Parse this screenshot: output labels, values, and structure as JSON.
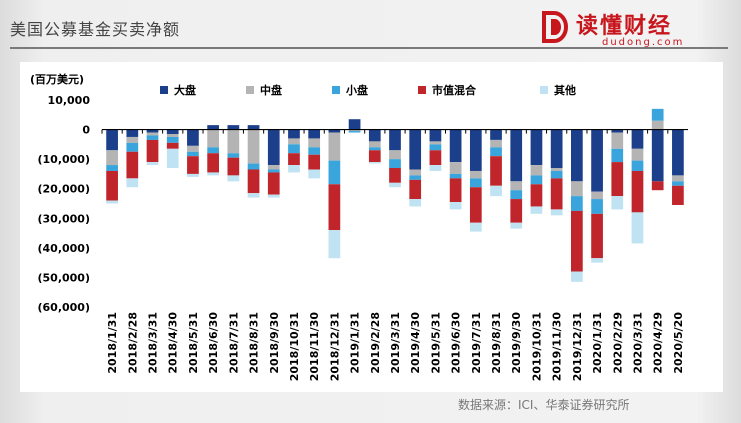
{
  "header": {
    "title": "美国公募基金买卖净额",
    "logo_cn": "读懂财经",
    "logo_en": "dudong.com"
  },
  "source": "数据来源：ICI、华泰证券研究所",
  "colors": {
    "large": "#1b3f8b",
    "mid": "#b4b4b4",
    "small": "#3aa5dc",
    "value_mix": "#c0252b",
    "other": "#bfe3f2",
    "brand": "#c8161d"
  },
  "chart_data": {
    "type": "bar",
    "stacked": true,
    "title": "",
    "unit_label": "(百万美元)",
    "xlabel": "",
    "ylabel": "",
    "ylim": [
      -60000,
      10000
    ],
    "yticks": [
      10000,
      0,
      -10000,
      -20000,
      -30000,
      -40000,
      -50000,
      -60000
    ],
    "ytick_labels": [
      "10,000",
      "0",
      "(10,000)",
      "(20,000)",
      "(30,000)",
      "(40,000)",
      "(50,000)",
      "(60,000)"
    ],
    "legend_position": "top",
    "grid": false,
    "categories": [
      "2018/1/31",
      "2018/2/28",
      "2018/3/31",
      "2018/4/30",
      "2018/5/31",
      "2018/6/30",
      "2018/7/31",
      "2018/8/31",
      "2018/9/30",
      "2018/10/31",
      "2018/11/30",
      "2018/12/31",
      "2019/1/31",
      "2019/2/28",
      "2019/3/31",
      "2019/4/30",
      "2019/5/31",
      "2019/6/30",
      "2019/7/31",
      "2019/8/31",
      "2019/9/30",
      "2019/10/31",
      "2019/11/30",
      "2019/12/31",
      "2020/1/31",
      "2020/2/29",
      "2020/3/31",
      "2020/4/29",
      "2020/5/20"
    ],
    "series": [
      {
        "name": "大盘",
        "key": "large",
        "values": [
          -7000,
          -2500,
          -1000,
          -1500,
          -5500,
          1500,
          1500,
          1500,
          -12000,
          -3000,
          -3000,
          -1000,
          3500,
          -4000,
          -7000,
          -13500,
          -4000,
          -11000,
          -14000,
          -3500,
          -17500,
          -12000,
          -13000,
          -17500,
          -21000,
          -1000,
          -6500,
          -17500,
          -15500
        ]
      },
      {
        "name": "中盘",
        "key": "mid",
        "values": [
          -5000,
          -2000,
          -1000,
          -1000,
          -2000,
          -6000,
          -8000,
          -11500,
          -1500,
          -2000,
          -3000,
          -9500,
          -500,
          -2000,
          -3000,
          -2000,
          -1000,
          -4000,
          -2500,
          -2500,
          -3000,
          -3500,
          -1000,
          -5000,
          -2500,
          -5500,
          -4000,
          3000,
          -2000
        ]
      },
      {
        "name": "小盘",
        "key": "small",
        "values": [
          -2000,
          -3000,
          -1500,
          -2000,
          -1500,
          -2000,
          -1500,
          -2000,
          -1000,
          -3000,
          -2500,
          -8000,
          -500,
          -1000,
          -3000,
          -1500,
          -2000,
          -1500,
          -3000,
          -3000,
          -3000,
          -3000,
          -2500,
          -5000,
          -5000,
          -4500,
          -3500,
          4000,
          -1500
        ]
      },
      {
        "name": "市值混合",
        "key": "value_mix",
        "values": [
          -10000,
          -9000,
          -7500,
          -2000,
          -6000,
          -6500,
          -6000,
          -8000,
          -7500,
          -4000,
          -5000,
          -15500,
          0,
          -4000,
          -5000,
          -6500,
          -5000,
          -8000,
          -12000,
          -10000,
          -8000,
          -7500,
          -10500,
          -20500,
          -15000,
          -11500,
          -14000,
          -3000,
          -6500
        ]
      },
      {
        "name": "其他",
        "key": "other",
        "values": [
          -1000,
          -3000,
          -1000,
          -6500,
          -1000,
          -1000,
          -2000,
          -1500,
          -1000,
          -2500,
          -3000,
          -9500,
          0,
          -500,
          -1500,
          -2500,
          -2000,
          -2500,
          -3000,
          -3500,
          -2000,
          -2500,
          -2000,
          -3500,
          -1500,
          -4500,
          -10500,
          0,
          0
        ]
      }
    ]
  }
}
